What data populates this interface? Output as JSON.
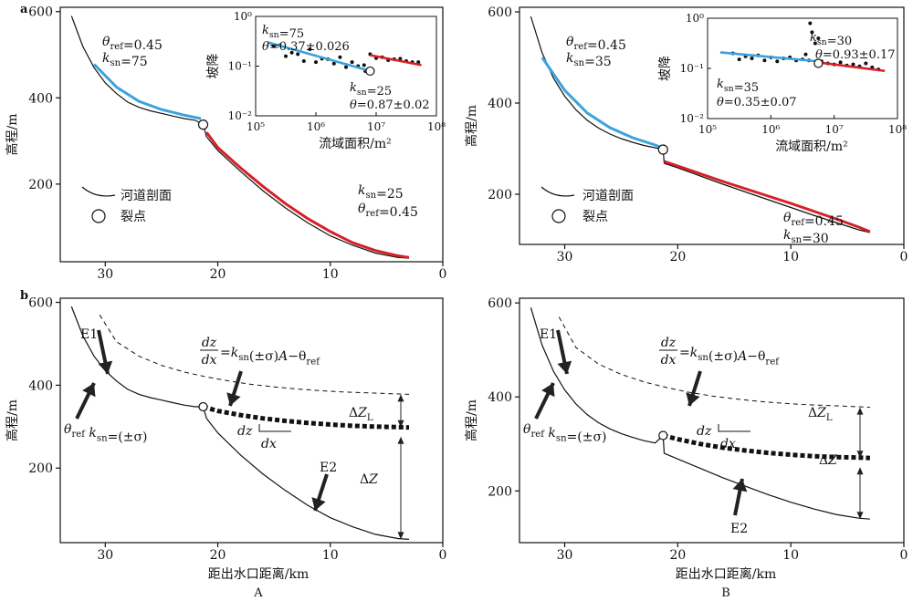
{
  "figure": {
    "panel_a_label": "a",
    "panel_b_label": "b",
    "column_A_label": "A",
    "column_B_label": "B",
    "y_label": "高程/m",
    "x_label": "距出水口距离/km",
    "legend_profile": "河道剖面",
    "legend_knick": "裂点"
  },
  "chart_data": [
    {
      "id": "aA",
      "type": "line",
      "xlim": [
        34,
        0
      ],
      "ylim": [
        20,
        610
      ],
      "xticks": [
        30,
        20,
        10,
        0
      ],
      "yticks": [
        600,
        400,
        200
      ],
      "profile": {
        "x": [
          33,
          32,
          31,
          30,
          29,
          28,
          27,
          26,
          25,
          24,
          23,
          22,
          21.3,
          21,
          20,
          18,
          16,
          14,
          12,
          10,
          8,
          6,
          4,
          3
        ],
        "y": [
          590,
          520,
          470,
          435,
          410,
          390,
          378,
          370,
          364,
          358,
          352,
          348,
          338,
          310,
          278,
          230,
          185,
          145,
          110,
          80,
          58,
          40,
          30,
          28
        ]
      },
      "fit_upper": {
        "x": [
          31,
          29,
          27,
          25,
          23,
          21.5
        ],
        "y": [
          478,
          425,
          392,
          373,
          360,
          352
        ],
        "color": "#3aa3dc"
      },
      "fit_lower": {
        "x": [
          21,
          20,
          18,
          16,
          14,
          12,
          10,
          8,
          6,
          4,
          3
        ],
        "y": [
          320,
          285,
          238,
          195,
          155,
          120,
          90,
          64,
          46,
          34,
          30
        ],
        "color": "#d62027"
      },
      "knickpoint": {
        "x": 21.3,
        "y": 338
      },
      "annotations": [
        {
          "lines": [
            "θref=0.45",
            "ksn=75"
          ]
        },
        {
          "lines": [
            "ksn=25",
            "θref=0.45"
          ]
        }
      ],
      "inset": {
        "x_label": "流域面积/m²",
        "y_label": "坡降",
        "xlog": [
          5,
          8
        ],
        "ylog": [
          -2,
          0
        ],
        "xtick_labels": [
          "10⁵",
          "10⁶",
          "10⁷",
          "10⁸"
        ],
        "ytick_labels": [
          "10⁰",
          "10⁻¹",
          "10⁻²"
        ],
        "points": [
          [
            5.3,
            -0.6
          ],
          [
            5.4,
            -0.58
          ],
          [
            5.5,
            -0.8
          ],
          [
            5.6,
            -0.73
          ],
          [
            5.7,
            -0.76
          ],
          [
            5.8,
            -0.9
          ],
          [
            5.9,
            -0.66
          ],
          [
            6,
            -0.92
          ],
          [
            6.1,
            -0.85
          ],
          [
            6.2,
            -0.86
          ],
          [
            6.3,
            -0.95
          ],
          [
            6.4,
            -0.82
          ],
          [
            6.5,
            -1.02
          ],
          [
            6.6,
            -0.92
          ],
          [
            6.7,
            -1.0
          ],
          [
            6.8,
            -0.98
          ],
          [
            6.82,
            -1.1
          ],
          [
            6.9,
            -0.76
          ],
          [
            7,
            -0.84
          ],
          [
            7.1,
            -0.82
          ],
          [
            7.2,
            -0.88
          ],
          [
            7.3,
            -0.86
          ],
          [
            7.4,
            -0.85
          ],
          [
            7.5,
            -0.9
          ],
          [
            7.6,
            -0.92
          ],
          [
            7.7,
            -0.92
          ]
        ],
        "fit_upper": {
          "x": [
            5.2,
            6.85
          ],
          "y": [
            -0.52,
            -1.08
          ]
        },
        "fit_lower": {
          "x": [
            6.9,
            7.75
          ],
          "y": [
            -0.78,
            -0.98
          ]
        },
        "knick": {
          "x": 6.9,
          "y": -1.1
        },
        "labels": [
          "ksn=75",
          "θ=0.37±0.026",
          "ksn=25",
          "θ=0.87±0.02"
        ]
      }
    },
    {
      "id": "aB",
      "type": "line",
      "xlim": [
        34,
        0
      ],
      "ylim": [
        90,
        610
      ],
      "xticks": [
        30,
        20,
        10,
        0
      ],
      "yticks": [
        600,
        400,
        200
      ],
      "profile": {
        "x": [
          33,
          32,
          31,
          30,
          29,
          28,
          27,
          26,
          25,
          24,
          23,
          22,
          21.3,
          21.2,
          20,
          18,
          16,
          14,
          12,
          10,
          8,
          6,
          4,
          3
        ],
        "y": [
          590,
          510,
          455,
          415,
          385,
          362,
          345,
          332,
          322,
          314,
          307,
          302,
          298,
          268,
          258,
          240,
          222,
          205,
          188,
          171,
          154,
          138,
          122,
          116
        ]
      },
      "fit_upper": {
        "x": [
          32,
          30,
          28,
          26,
          24,
          22,
          21.4
        ],
        "y": [
          500,
          428,
          378,
          346,
          324,
          308,
          302
        ],
        "color": "#3aa3dc"
      },
      "fit_lower": {
        "x": [
          21.2,
          20,
          18,
          16,
          14,
          12,
          10,
          8,
          6,
          4,
          3
        ],
        "y": [
          272,
          262,
          245,
          228,
          212,
          196,
          180,
          163,
          146,
          128,
          118
        ],
        "color": "#d62027"
      },
      "knickpoint": {
        "x": 21.3,
        "y": 298
      },
      "annotations": [
        {
          "lines": [
            "θref=0.45",
            "ksn=35"
          ]
        },
        {
          "lines": [
            "θref=0.45",
            "ksn=30"
          ]
        }
      ],
      "inset": {
        "x_label": "流域面积/m²",
        "y_label": "坡降",
        "xlog": [
          5,
          8
        ],
        "ylog": [
          -2,
          0
        ],
        "xtick_labels": [
          "10⁵",
          "10⁶",
          "10⁷",
          "10⁸"
        ],
        "ytick_labels": [
          "10⁰",
          "10⁻¹",
          "10⁻²"
        ],
        "points": [
          [
            5.4,
            -0.7
          ],
          [
            5.5,
            -0.82
          ],
          [
            5.6,
            -0.76
          ],
          [
            5.7,
            -0.8
          ],
          [
            5.8,
            -0.74
          ],
          [
            5.9,
            -0.84
          ],
          [
            6,
            -0.78
          ],
          [
            6.1,
            -0.86
          ],
          [
            6.2,
            -0.8
          ],
          [
            6.3,
            -0.78
          ],
          [
            6.4,
            -0.84
          ],
          [
            6.5,
            -0.82
          ],
          [
            6.55,
            -0.72
          ],
          [
            6.6,
            -0.84
          ],
          [
            6.62,
            -0.1
          ],
          [
            6.65,
            -0.28
          ],
          [
            6.7,
            -0.5
          ],
          [
            6.75,
            -0.4
          ],
          [
            6.8,
            -0.86
          ],
          [
            6.9,
            -0.9
          ],
          [
            7,
            -0.92
          ],
          [
            7.1,
            -0.88
          ],
          [
            7.2,
            -0.94
          ],
          [
            7.3,
            -0.92
          ],
          [
            7.4,
            -0.96
          ],
          [
            7.5,
            -0.9
          ],
          [
            7.6,
            -0.98
          ],
          [
            7.7,
            -1.02
          ]
        ],
        "fit_upper": {
          "x": [
            5.2,
            6.75
          ],
          "y": [
            -0.68,
            -0.86
          ]
        },
        "fit_lower": {
          "x": [
            6.75,
            7.8
          ],
          "y": [
            -0.88,
            -1.05
          ]
        },
        "knick": {
          "x": 6.75,
          "y": -0.9
        },
        "labels": [
          "ksn=35",
          "θ=0.35±0.07",
          "ksn=30",
          "θ=0.93±0.17"
        ]
      }
    },
    {
      "id": "bA",
      "type": "line",
      "xlim": [
        34,
        0
      ],
      "ylim": [
        20,
        610
      ],
      "xticks": [
        30,
        20,
        10,
        0
      ],
      "yticks": [
        600,
        400,
        200
      ],
      "profile": {
        "x": [
          33,
          32,
          31,
          30,
          29,
          28,
          27,
          26,
          25,
          24,
          23,
          22,
          21.3,
          21,
          20,
          18,
          16,
          14,
          12,
          10,
          8,
          6,
          4,
          3
        ],
        "y": [
          590,
          520,
          470,
          435,
          410,
          390,
          378,
          370,
          364,
          358,
          352,
          348,
          348,
          320,
          285,
          232,
          186,
          146,
          110,
          80,
          58,
          40,
          30,
          28
        ]
      },
      "projected": {
        "x": [
          30.5,
          29,
          27,
          25,
          23,
          21,
          19,
          17,
          15,
          13,
          11,
          9,
          7,
          5,
          3
        ],
        "y": [
          570,
          505,
          470,
          448,
          432,
          420,
          410,
          402,
          396,
          391,
          387,
          384,
          382,
          380,
          378
        ]
      },
      "dotted": {
        "x": [
          21.3,
          20,
          18,
          16,
          14,
          12,
          10,
          8,
          6,
          4,
          3
        ],
        "y": [
          348,
          338,
          328,
          320,
          314,
          309,
          305,
          302,
          300,
          299,
          298
        ]
      },
      "knickpoint": {
        "x": 21.3,
        "y": 348
      },
      "labels": {
        "e1": "E1",
        "e2": "E2",
        "theta_ksn": "θref ksn=(±σ)",
        "eq_lhs": "dz/dx",
        "eq_rhs": "=ksn(±σ)A−θref",
        "dz": "dz",
        "dx": "dx",
        "dZL": "ΔZL",
        "dZ": "ΔZ"
      }
    },
    {
      "id": "bB",
      "type": "line",
      "xlim": [
        34,
        0
      ],
      "ylim": [
        90,
        610
      ],
      "xticks": [
        30,
        20,
        10,
        0
      ],
      "yticks": [
        600,
        400,
        200
      ],
      "profile": {
        "x": [
          33,
          32,
          31,
          30,
          29,
          28,
          27,
          26,
          25,
          24,
          23,
          22,
          21.3,
          21.2,
          20,
          18,
          16,
          14,
          12,
          10,
          8,
          6,
          4,
          3
        ],
        "y": [
          590,
          510,
          455,
          415,
          385,
          362,
          345,
          332,
          322,
          314,
          307,
          302,
          318,
          280,
          268,
          248,
          228,
          210,
          192,
          176,
          162,
          150,
          142,
          140
        ]
      },
      "projected": {
        "x": [
          30.5,
          29,
          27,
          25,
          23,
          21,
          19,
          17,
          15,
          13,
          11,
          9,
          7,
          5,
          3
        ],
        "y": [
          570,
          505,
          470,
          448,
          432,
          420,
          410,
          402,
          396,
          391,
          387,
          384,
          382,
          380,
          378
        ]
      },
      "dotted": {
        "x": [
          21.3,
          20,
          18,
          16,
          14,
          12,
          10,
          8,
          6,
          4,
          3
        ],
        "y": [
          318,
          310,
          300,
          292,
          286,
          281,
          277,
          274,
          272,
          271,
          270
        ]
      },
      "knickpoint": {
        "x": 21.3,
        "y": 318
      },
      "labels": {
        "e1": "E1",
        "e2": "E2",
        "theta_ksn": "θref ksn=(±σ)",
        "eq_lhs": "dz/dx",
        "eq_rhs": "=ksn(±σ)A−θref",
        "dz": "dz",
        "dx": "dx",
        "dZL": "ΔZL",
        "dZ": "ΔZ"
      }
    }
  ]
}
